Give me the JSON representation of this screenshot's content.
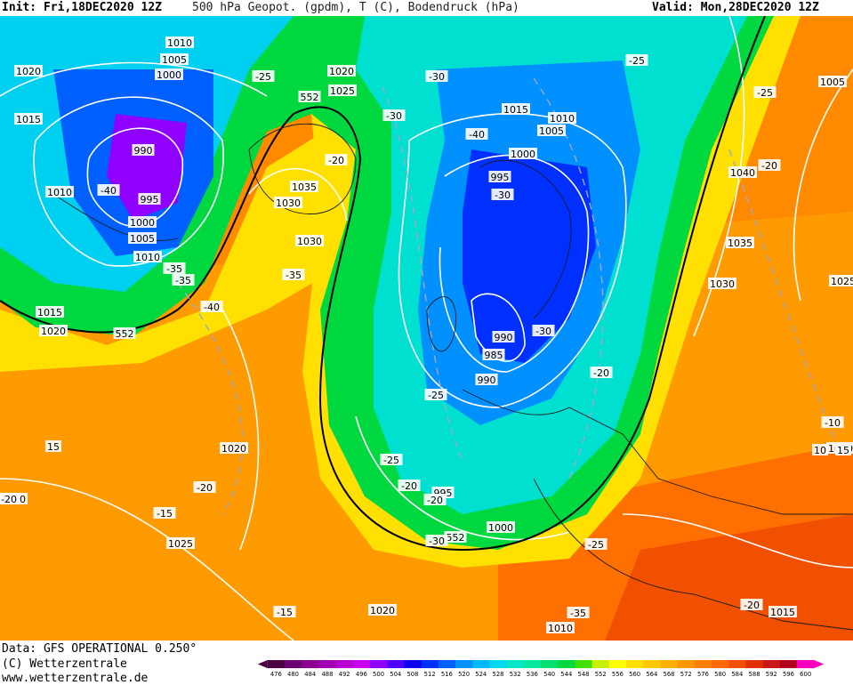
{
  "header": {
    "init": "Init: Fri,18DEC2020 12Z",
    "title": "500 hPa Geopot. (gpdm), T (C), Bodendruck (hPa)",
    "valid": "Valid: Mon,28DEC2020 12Z"
  },
  "footer": {
    "source": "Data: GFS OPERATIONAL 0.250°",
    "copyright": "(C) Wetterzentrale",
    "url": "www.wetterzentrale.de"
  },
  "legend": {
    "values": [
      "476",
      "480",
      "484",
      "488",
      "492",
      "496",
      "500",
      "504",
      "508",
      "512",
      "516",
      "520",
      "524",
      "528",
      "532",
      "536",
      "540",
      "544",
      "548",
      "552",
      "556",
      "560",
      "564",
      "568",
      "572",
      "576",
      "580",
      "584",
      "588",
      "592",
      "596",
      "600"
    ],
    "colors": [
      "#4b0040",
      "#6a0070",
      "#8a0090",
      "#a000b0",
      "#b800d0",
      "#c800f0",
      "#9000ff",
      "#5000ff",
      "#1000f0",
      "#0030ff",
      "#0060ff",
      "#0090ff",
      "#00b8ff",
      "#00d8f0",
      "#00e8c8",
      "#00e8a0",
      "#00e070",
      "#00d840",
      "#40e000",
      "#c8f000",
      "#ffff00",
      "#ffe000",
      "#ffc800",
      "#ffb000",
      "#ff9800",
      "#ff8000",
      "#ff6800",
      "#f05000",
      "#e03000",
      "#c81818",
      "#b00020",
      "#ff00c0"
    ]
  },
  "map_labels": {
    "pressure": [
      "1020",
      "1015",
      "1010",
      "1005",
      "1000",
      "990",
      "995",
      "1000",
      "1005",
      "1010",
      "1010",
      "1015",
      "1020",
      "1025",
      "552",
      "1035",
      "1030",
      "1030",
      "1020",
      "1015",
      "1010",
      "1005",
      "1000",
      "995",
      "990",
      "985",
      "990",
      "995",
      "1000",
      "1005",
      "1040",
      "1035",
      "1030",
      "1025",
      "10",
      "1020",
      "15",
      "1020",
      "1025",
      "1020",
      "1010",
      "1015",
      "552",
      "552",
      "1020",
      "15"
    ],
    "temperature": [
      "-25",
      "-30",
      "-30",
      "-25",
      "-20",
      "-25",
      "-20",
      "-40",
      "-30",
      "-40",
      "-35",
      "-35",
      "-40",
      "-35",
      "-30",
      "-20",
      "-25",
      "-25",
      "-20",
      "-20",
      "-20",
      "-15",
      "-15",
      "-35",
      "-30",
      "-25",
      "-20",
      "-10",
      "-20"
    ]
  }
}
